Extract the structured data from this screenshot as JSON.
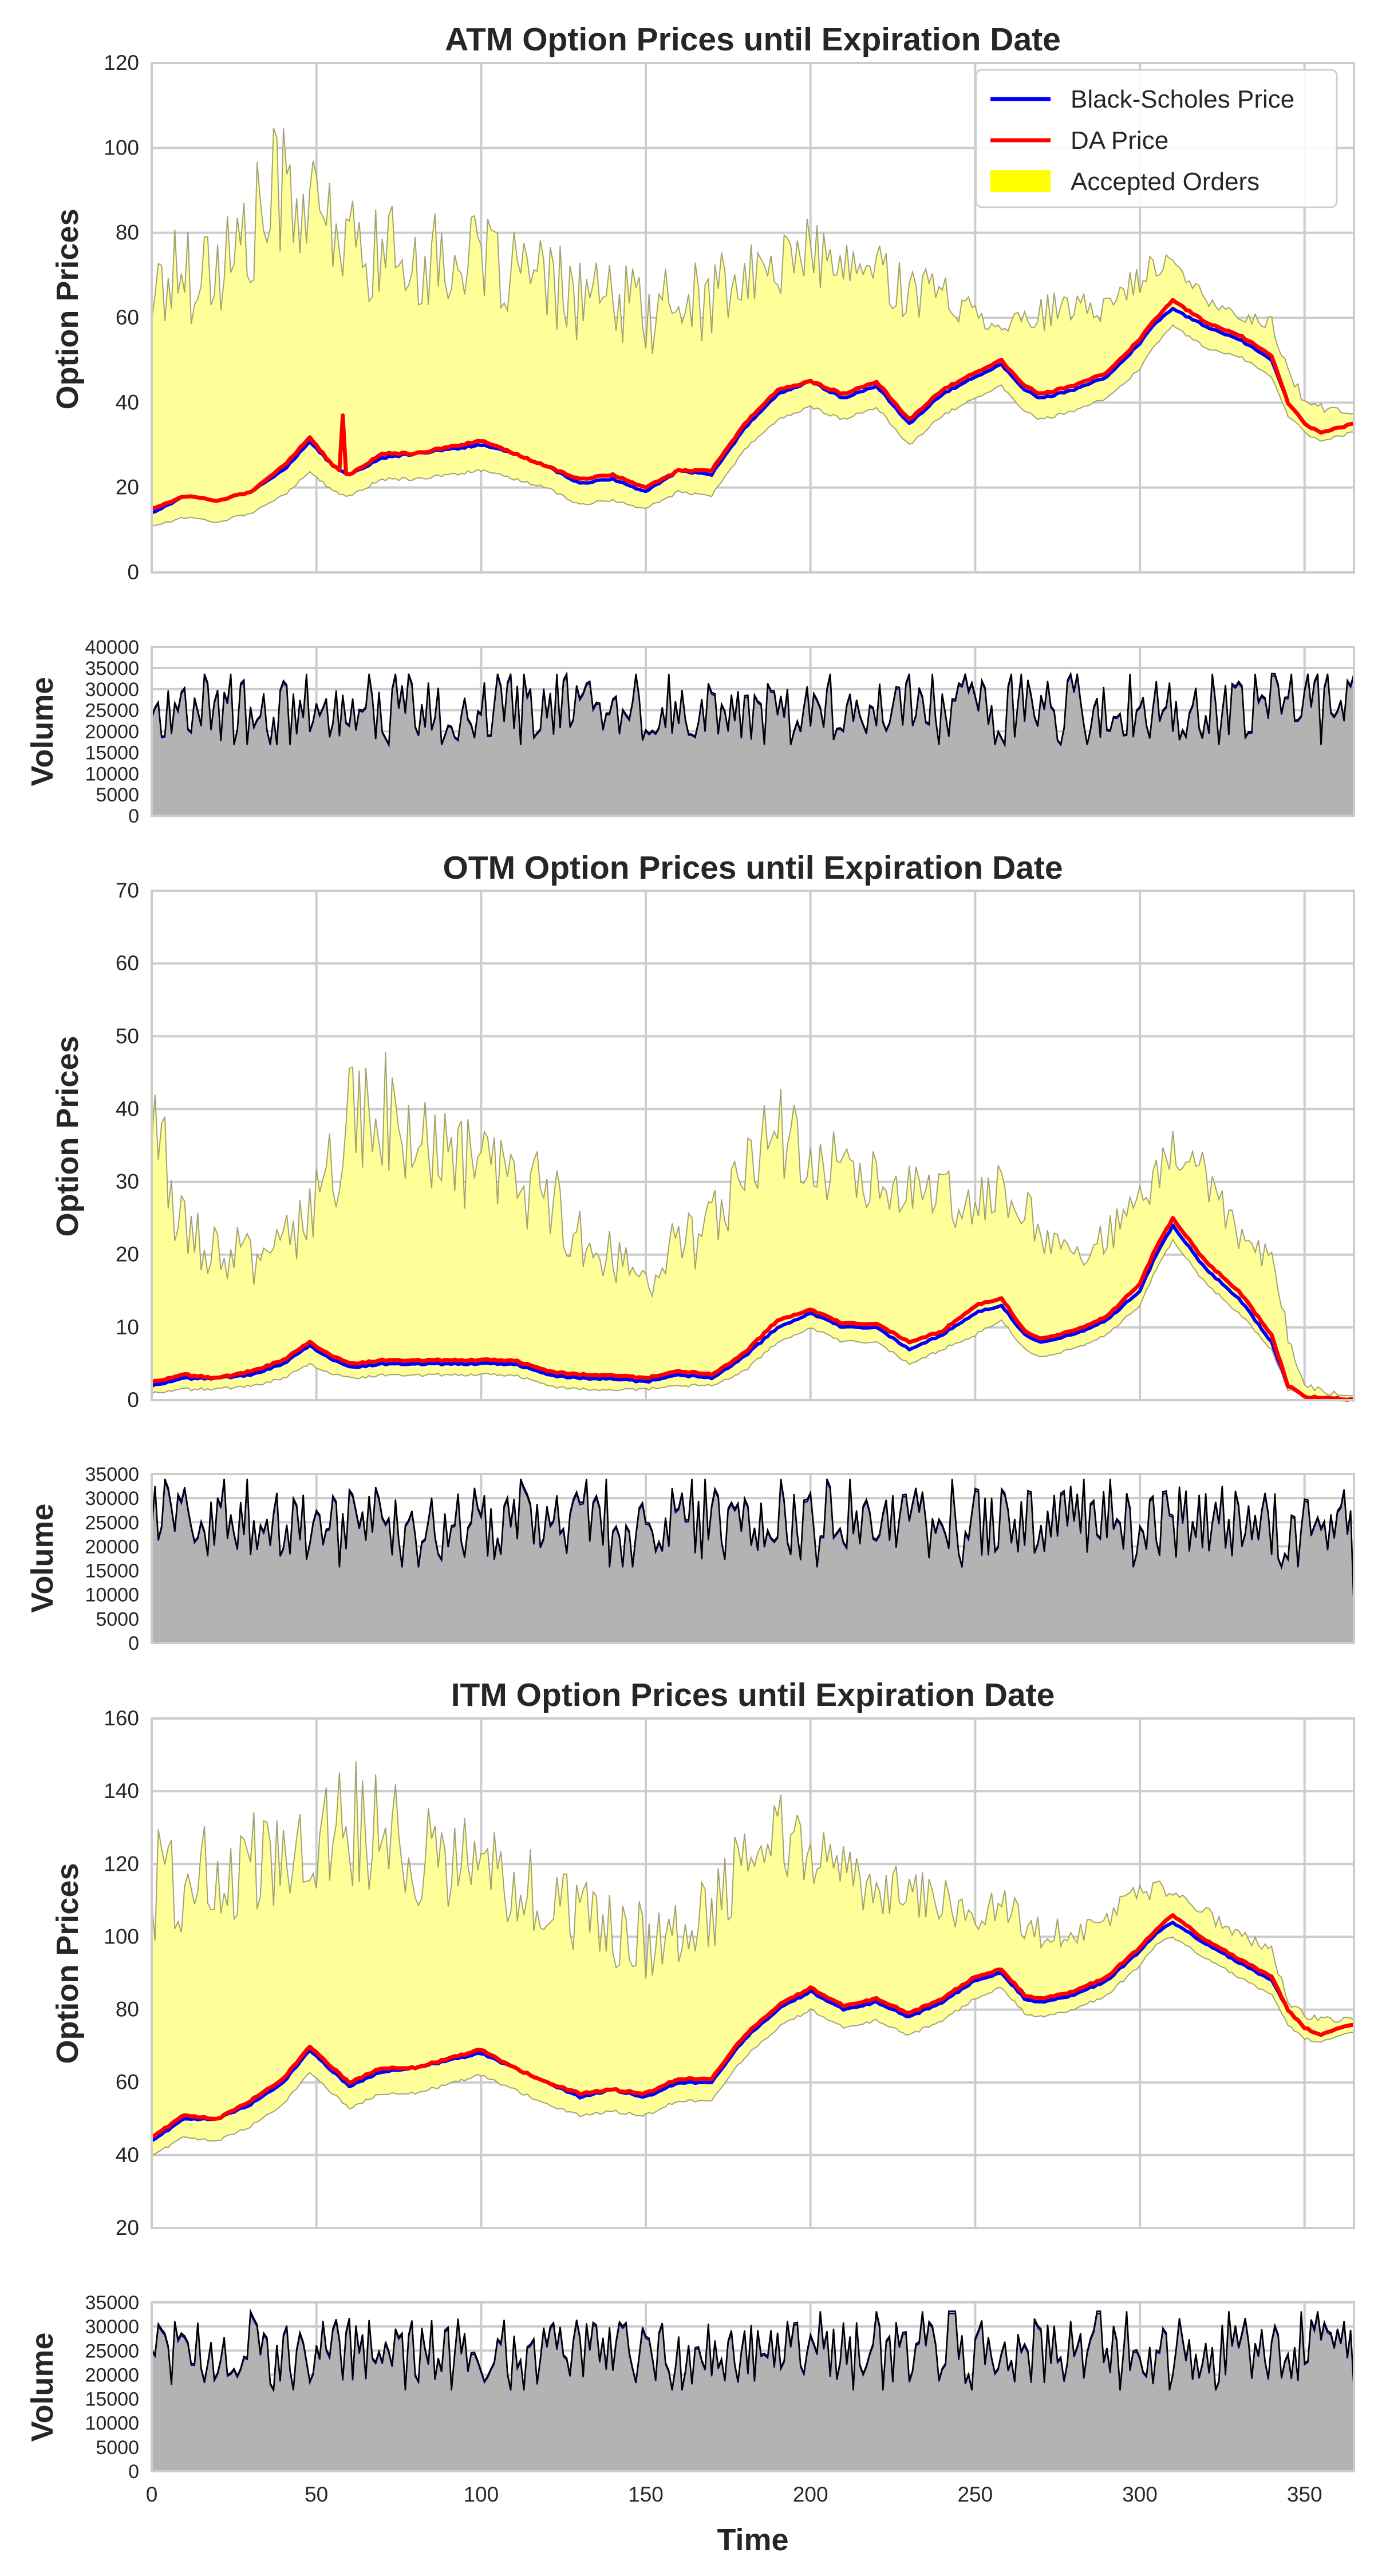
{
  "colors": {
    "bs": "#0000ff",
    "da": "#ff0000",
    "orders_fill": "#ffff99",
    "orders_edge": "#8c8c5a",
    "volume_fill": "#b3b3b3",
    "background": "#ffffff",
    "grid": "#cccccc"
  },
  "legend": {
    "location": "top-right",
    "items": [
      {
        "label": "Black-Scholes Price",
        "kind": "line",
        "color": "#0000ff"
      },
      {
        "label": "DA Price",
        "kind": "line",
        "color": "#ff0000"
      },
      {
        "label": "Accepted Orders",
        "kind": "patch",
        "color": "#ffff00"
      }
    ]
  },
  "shared_xaxis": {
    "label": "Time",
    "range": [
      0,
      365
    ],
    "ticks": [
      0,
      50,
      100,
      150,
      200,
      250,
      300,
      350
    ]
  },
  "chart_data": [
    {
      "type": "area",
      "panel": "atm-price",
      "title": "ATM Option Prices until Expiration Date",
      "ylabel": "Option Prices",
      "xlim": [
        0,
        365
      ],
      "ylim": [
        0,
        120
      ],
      "yticks": [
        0,
        20,
        40,
        60,
        80,
        100,
        120
      ],
      "grid": true,
      "legend": true,
      "x_knots": [
        0,
        10,
        20,
        30,
        40,
        48,
        55,
        60,
        70,
        80,
        100,
        110,
        120,
        130,
        140,
        150,
        160,
        170,
        180,
        190,
        200,
        210,
        220,
        230,
        240,
        250,
        258,
        265,
        270,
        280,
        290,
        300,
        305,
        310,
        320,
        330,
        340,
        345,
        350,
        355,
        360,
        365
      ],
      "series": [
        {
          "name": "Black-Scholes Price",
          "values": [
            14,
            18,
            17,
            19,
            24,
            31,
            25,
            23,
            27,
            28,
            30,
            28,
            25,
            21,
            22,
            19,
            24,
            23,
            34,
            42,
            45,
            41,
            44,
            35,
            42,
            46,
            49,
            43,
            41,
            43,
            46,
            54,
            59,
            62,
            58,
            55,
            50,
            40,
            35,
            33,
            34,
            35
          ]
        },
        {
          "name": "DA Price",
          "values": [
            15,
            18,
            17,
            19,
            25,
            32,
            25,
            23,
            28,
            28,
            31,
            28,
            25,
            22,
            23,
            20,
            24,
            24,
            35,
            43,
            45,
            42,
            45,
            36,
            43,
            47,
            50,
            44,
            42,
            44,
            47,
            55,
            60,
            64,
            59,
            56,
            51,
            40,
            35,
            33,
            34,
            35
          ]
        },
        {
          "name": "Accepted Orders (upper)",
          "values": [
            62,
            68,
            68,
            74,
            88,
            80,
            78,
            72,
            72,
            70,
            70,
            68,
            64,
            62,
            60,
            58,
            60,
            62,
            66,
            70,
            74,
            68,
            70,
            64,
            64,
            60,
            58,
            58,
            60,
            60,
            62,
            68,
            72,
            72,
            64,
            60,
            58,
            48,
            40,
            38,
            38,
            37
          ]
        },
        {
          "name": "Accepted Orders (lower)",
          "values": [
            11,
            13,
            12,
            14,
            18,
            24,
            19,
            18,
            22,
            22,
            24,
            22,
            20,
            16,
            17,
            15,
            19,
            18,
            29,
            36,
            39,
            36,
            39,
            30,
            37,
            41,
            44,
            38,
            36,
            38,
            41,
            48,
            54,
            58,
            53,
            51,
            46,
            37,
            33,
            31,
            32,
            33
          ]
        }
      ],
      "da_spikes": [
        {
          "x": 58,
          "y": 37
        },
        {
          "x": 260,
          "y": 48
        }
      ]
    },
    {
      "type": "area",
      "panel": "atm-volume",
      "ylabel": "Volume",
      "xlim": [
        0,
        365
      ],
      "ylim": [
        0,
        40000
      ],
      "yticks": [
        0,
        5000,
        10000,
        15000,
        20000,
        25000,
        30000,
        35000,
        40000
      ],
      "grid": true,
      "series": [
        {
          "name": "Volume",
          "mean": 25000,
          "values_range": [
            17000,
            35000
          ]
        }
      ]
    },
    {
      "type": "area",
      "panel": "otm-price",
      "title": "OTM Option Prices until Expiration Date",
      "ylabel": "Option Prices",
      "xlim": [
        0,
        365
      ],
      "ylim": [
        0,
        70
      ],
      "yticks": [
        0,
        10,
        20,
        30,
        40,
        50,
        60,
        70
      ],
      "grid": true,
      "x_knots": [
        0,
        10,
        20,
        30,
        40,
        48,
        55,
        60,
        70,
        80,
        100,
        110,
        120,
        130,
        140,
        150,
        160,
        170,
        180,
        190,
        200,
        210,
        220,
        230,
        240,
        250,
        258,
        265,
        270,
        280,
        290,
        300,
        305,
        310,
        320,
        330,
        340,
        345,
        350,
        355,
        360,
        365
      ],
      "series": [
        {
          "name": "Black-Scholes Price",
          "values": [
            2,
            3,
            3,
            3.5,
            5,
            7.5,
            5.5,
            4.5,
            5,
            5,
            5,
            5,
            3.5,
            3,
            3,
            2.5,
            3.5,
            3,
            6,
            10,
            12,
            10,
            10,
            7,
            9,
            12,
            13,
            9,
            8,
            9,
            11,
            15,
            20,
            24,
            18,
            14,
            8,
            2,
            0.5,
            0.3,
            0.2,
            0.1
          ]
        },
        {
          "name": "DA Price",
          "values": [
            2.5,
            3.5,
            3,
            4,
            5.5,
            8,
            6,
            5,
            5.5,
            5.5,
            5.5,
            5.5,
            4,
            3.5,
            3.5,
            3,
            4,
            3.5,
            6.5,
            11,
            12.5,
            10.5,
            10.5,
            8,
            9.5,
            13,
            14,
            9.5,
            8.5,
            9.5,
            11.5,
            16,
            21,
            25,
            19,
            15,
            9,
            2,
            0.5,
            0.3,
            0.2,
            0.1
          ]
        },
        {
          "name": "Accepted Orders (upper)",
          "values": [
            36,
            22,
            20,
            18,
            20,
            24,
            30,
            35,
            38,
            32,
            30,
            28,
            26,
            22,
            18,
            16,
            20,
            22,
            30,
            35,
            32,
            30,
            30,
            28,
            26,
            26,
            28,
            24,
            22,
            20,
            22,
            26,
            30,
            34,
            30,
            22,
            18,
            8,
            2,
            1,
            0.5,
            0.3
          ]
        },
        {
          "name": "Accepted Orders (lower)",
          "values": [
            1,
            1.5,
            1.5,
            2,
            3,
            5,
            3.5,
            3,
            3.5,
            3.5,
            3.5,
            3.5,
            2,
            1.5,
            1.5,
            1.5,
            2,
            2,
            4,
            8,
            10,
            8,
            8,
            5,
            7,
            9,
            11,
            7,
            6,
            7,
            9,
            13,
            18,
            22,
            16,
            12,
            7,
            1.5,
            0.3,
            0.2,
            0.1,
            0.1
          ]
        }
      ]
    },
    {
      "type": "area",
      "panel": "otm-volume",
      "ylabel": "Volume",
      "xlim": [
        0,
        365
      ],
      "ylim": [
        0,
        35000
      ],
      "yticks": [
        0,
        5000,
        10000,
        15000,
        20000,
        25000,
        30000,
        35000
      ],
      "grid": true,
      "series": [
        {
          "name": "Volume",
          "mean": 25000,
          "values_range": [
            15000,
            34000
          ],
          "last_value": 7000
        }
      ]
    },
    {
      "type": "area",
      "panel": "itm-price",
      "title": "ITM Option Prices until Expiration Date",
      "ylabel": "Option Prices",
      "xlim": [
        0,
        365
      ],
      "ylim": [
        20,
        160
      ],
      "yticks": [
        20,
        40,
        60,
        80,
        100,
        120,
        140,
        160
      ],
      "grid": true,
      "x_knots": [
        0,
        10,
        20,
        30,
        40,
        48,
        55,
        60,
        70,
        80,
        100,
        110,
        120,
        130,
        140,
        150,
        160,
        170,
        180,
        190,
        200,
        210,
        220,
        230,
        240,
        250,
        258,
        265,
        270,
        280,
        290,
        300,
        305,
        310,
        320,
        330,
        340,
        345,
        350,
        355,
        360,
        365
      ],
      "series": [
        {
          "name": "Black-Scholes Price",
          "values": [
            44,
            50,
            50,
            54,
            60,
            69,
            63,
            59,
            63,
            64,
            68,
            64,
            60,
            56,
            58,
            56,
            60,
            60,
            72,
            80,
            85,
            80,
            82,
            78,
            82,
            88,
            90,
            83,
            82,
            84,
            88,
            96,
            101,
            104,
            98,
            93,
            88,
            80,
            75,
            73,
            75,
            76
          ]
        },
        {
          "name": "DA Price",
          "values": [
            45,
            51,
            50,
            55,
            61,
            70,
            64,
            60,
            64,
            64,
            69,
            64,
            60,
            57,
            58,
            57,
            61,
            61,
            73,
            81,
            86,
            81,
            83,
            79,
            83,
            89,
            91,
            84,
            83,
            85,
            89,
            97,
            102,
            106,
            99,
            94,
            89,
            80,
            75,
            73,
            75,
            76
          ]
        },
        {
          "name": "Accepted Orders (upper)",
          "values": [
            108,
            110,
            112,
            114,
            118,
            122,
            125,
            126,
            124,
            118,
            116,
            112,
            106,
            102,
            98,
            96,
            98,
            104,
            118,
            126,
            120,
            114,
            112,
            108,
            108,
            104,
            108,
            102,
            100,
            100,
            104,
            110,
            112,
            112,
            106,
            100,
            96,
            82,
            78,
            77,
            77,
            77
          ]
        },
        {
          "name": "Accepted Orders (lower)",
          "values": [
            40,
            45,
            44,
            48,
            54,
            63,
            57,
            53,
            57,
            57,
            62,
            58,
            54,
            51,
            52,
            51,
            55,
            55,
            67,
            75,
            80,
            75,
            77,
            73,
            77,
            83,
            86,
            79,
            78,
            80,
            84,
            92,
            98,
            100,
            94,
            89,
            84,
            76,
            72,
            71,
            73,
            74
          ]
        }
      ]
    },
    {
      "type": "area",
      "panel": "itm-volume",
      "ylabel": "Volume",
      "xlabel": "Time",
      "xlim": [
        0,
        365
      ],
      "ylim": [
        0,
        35000
      ],
      "yticks": [
        0,
        5000,
        10000,
        15000,
        20000,
        25000,
        30000,
        35000
      ],
      "grid": true,
      "series": [
        {
          "name": "Volume",
          "mean": 25000,
          "values_range": [
            17000,
            34000
          ]
        }
      ]
    }
  ]
}
